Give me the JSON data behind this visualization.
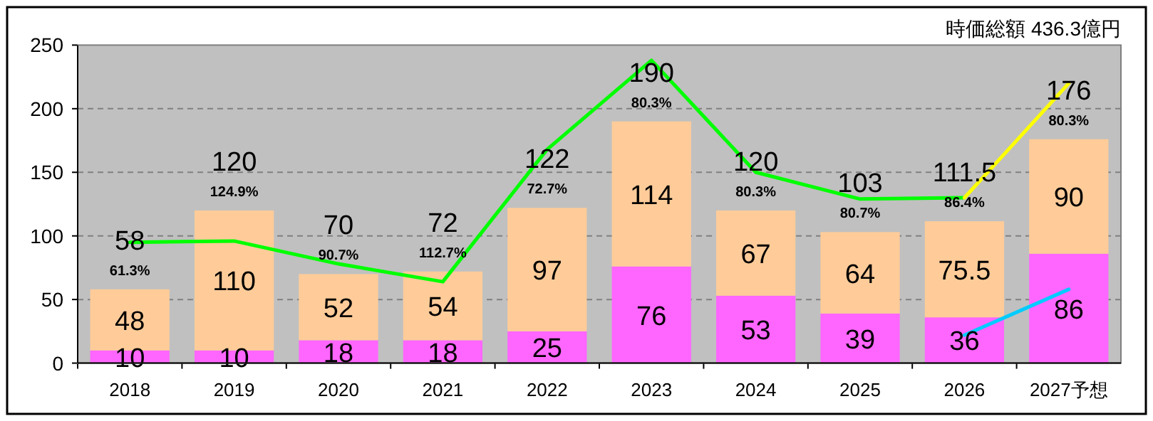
{
  "chart_data": {
    "type": "bar",
    "stacked": true,
    "title": "時価総額  436.3億円",
    "categories": [
      "2018",
      "2019",
      "2020",
      "2021",
      "2022",
      "2023",
      "2024",
      "2025",
      "2026",
      "2027予想"
    ],
    "series": [
      {
        "color": "#ff66ff",
        "values": [
          10,
          10,
          18,
          18,
          25,
          76,
          53,
          39,
          36,
          86
        ],
        "value_labels": [
          "10",
          "10",
          "18",
          "18",
          "25",
          "76",
          "53",
          "39",
          "36",
          "86"
        ]
      },
      {
        "color": "#ffcc99",
        "values": [
          48,
          110,
          52,
          54,
          97,
          114,
          67,
          64,
          75.5,
          90
        ],
        "value_labels": [
          "48",
          "110",
          "52",
          "54",
          "97",
          "114",
          "67",
          "64",
          "75.5",
          "90"
        ]
      },
      {
        "type": "line",
        "color": "#00ff00",
        "values": [
          95,
          96,
          78,
          64,
          168,
          238,
          150,
          129,
          130,
          null
        ]
      },
      {
        "type": "line",
        "color": "#ffff00",
        "values": [
          null,
          null,
          null,
          null,
          null,
          null,
          null,
          null,
          130,
          220
        ]
      },
      {
        "type": "line",
        "color": "#00ccff",
        "values": [
          null,
          null,
          null,
          null,
          null,
          null,
          null,
          null,
          22,
          58
        ]
      }
    ],
    "totals": [
      "58",
      "120",
      "70",
      "72",
      "122",
      "190",
      "120",
      "103",
      "111.5",
      "176"
    ],
    "annotations": [
      "61.3%",
      "124.9%",
      "90.7%",
      "112.7%",
      "72.7%",
      "80.3%",
      "80.3%",
      "80.7%",
      "86.4%",
      "80.3%"
    ],
    "ylim": [
      0,
      250
    ],
    "yticks": [
      0,
      50,
      100,
      150,
      200,
      250
    ],
    "grid": "y"
  }
}
